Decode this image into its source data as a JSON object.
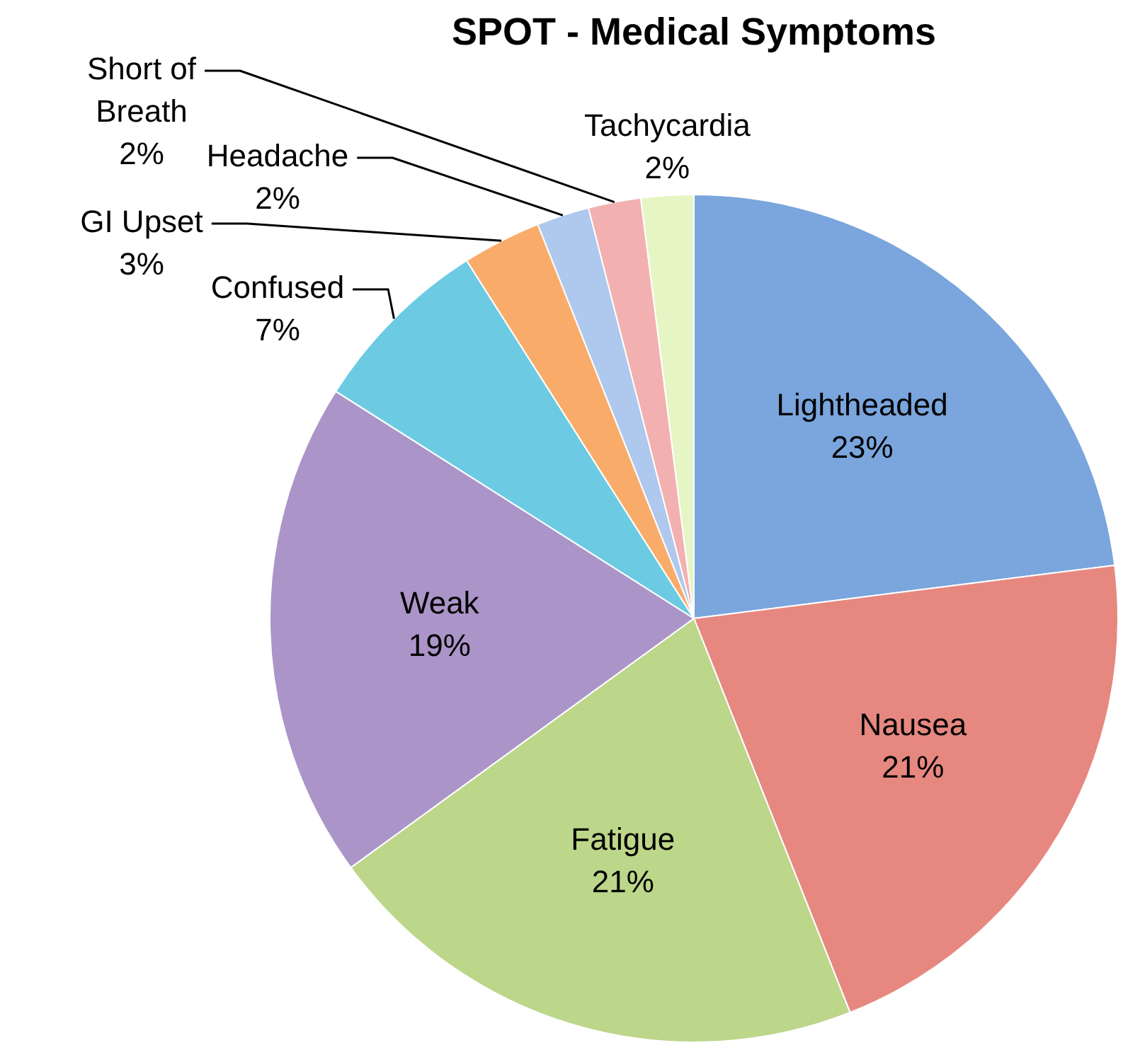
{
  "chart_data": {
    "type": "pie",
    "title": "SPOT - Medical Symptoms",
    "categories": [
      "Lightheaded",
      "Nausea",
      "Fatigue",
      "Weak",
      "Confused",
      "GI Upset",
      "Headache",
      "Short of Breath",
      "Tachycardia"
    ],
    "values": [
      23,
      21,
      21,
      19,
      7,
      3,
      2,
      2,
      2
    ],
    "value_labels": [
      "23%",
      "21%",
      "21%",
      "19%",
      "7%",
      "3%",
      "2%",
      "2%",
      "2%"
    ],
    "colors": [
      "#7aa5dd",
      "#e68880",
      "#bcd68a",
      "#ab95c8",
      "#6ccbe3",
      "#f9ac6a",
      "#afc8ee",
      "#f3b0b0",
      "#e6f5c4"
    ]
  }
}
